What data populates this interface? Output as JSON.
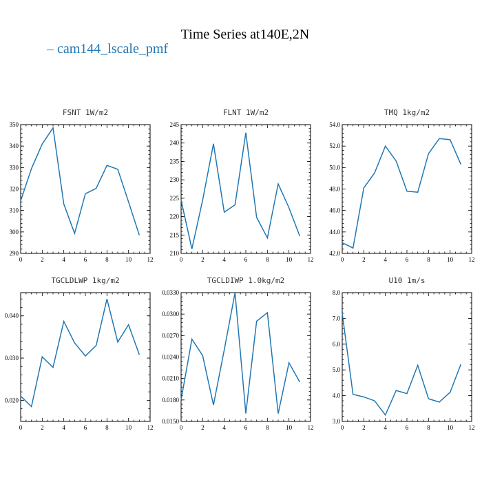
{
  "figure": {
    "title": "Time Series at140E,2N",
    "legend_label": "cam144_lscale_pmf",
    "series_color": "#1f77b4"
  },
  "chart_data": [
    {
      "type": "line",
      "title": "FSNT  1W/m2",
      "x": [
        0,
        1,
        2,
        3,
        4,
        5,
        6,
        7,
        8,
        9,
        10,
        11
      ],
      "series": [
        {
          "values": [
            314.5,
            329.5,
            341,
            348.5,
            313,
            299.3,
            317.8,
            320.3,
            331,
            329.2,
            314,
            298.5
          ]
        }
      ],
      "xlim": [
        0,
        12
      ],
      "ylim": [
        290,
        350
      ],
      "xticks": [
        0,
        2,
        4,
        6,
        8,
        10,
        12
      ],
      "yticks": [
        290,
        300,
        310,
        320,
        330,
        340,
        350
      ],
      "ytick_labels": [
        "290",
        "300",
        "310",
        "320",
        "330",
        "340",
        "350"
      ]
    },
    {
      "type": "line",
      "title": "FLNT  1W/m2",
      "x": [
        0,
        1,
        2,
        3,
        4,
        5,
        6,
        7,
        8,
        9,
        10,
        11
      ],
      "series": [
        {
          "values": [
            224.5,
            211.2,
            224.5,
            239.8,
            221.2,
            223.2,
            242.8,
            219.8,
            214.2,
            228.9,
            222.4,
            214.7
          ]
        }
      ],
      "xlim": [
        0,
        12
      ],
      "ylim": [
        210,
        245
      ],
      "xticks": [
        0,
        2,
        4,
        6,
        8,
        10,
        12
      ],
      "yticks": [
        210,
        215,
        220,
        225,
        230,
        235,
        240,
        245
      ],
      "ytick_labels": [
        "210",
        "215",
        "220",
        "225",
        "230",
        "235",
        "240",
        "245"
      ]
    },
    {
      "type": "line",
      "title": "TMQ  1kg/m2",
      "x": [
        0,
        1,
        2,
        3,
        4,
        5,
        6,
        7,
        8,
        9,
        10,
        11
      ],
      "series": [
        {
          "values": [
            43.0,
            42.5,
            48.1,
            49.5,
            52.0,
            50.6,
            47.8,
            47.7,
            51.3,
            52.7,
            52.6,
            50.3
          ]
        }
      ],
      "xlim": [
        0,
        12
      ],
      "ylim": [
        42,
        54
      ],
      "xticks": [
        0,
        2,
        4,
        6,
        8,
        10,
        12
      ],
      "yticks": [
        42,
        44,
        46,
        48,
        50,
        52,
        54
      ],
      "ytick_labels": [
        "42.0",
        "44.0",
        "46.0",
        "48.0",
        "50.0",
        "52.0",
        "54.0"
      ]
    },
    {
      "type": "line",
      "title": "TGCLDLWP  1kg/m2",
      "x": [
        0,
        1,
        2,
        3,
        4,
        5,
        6,
        7,
        8,
        9,
        10,
        11
      ],
      "series": [
        {
          "values": [
            0.021,
            0.0185,
            0.0303,
            0.0278,
            0.0387,
            0.0336,
            0.0305,
            0.033,
            0.044,
            0.0338,
            0.0379,
            0.0308
          ]
        }
      ],
      "xlim": [
        0,
        12
      ],
      "ylim": [
        0.015,
        0.0455
      ],
      "xticks": [
        0,
        2,
        4,
        6,
        8,
        10,
        12
      ],
      "yticks": [
        0.02,
        0.03,
        0.04
      ],
      "ytick_labels": [
        "0.020",
        "0.030",
        "0.040"
      ]
    },
    {
      "type": "line",
      "title": "TGCLDIWP  1.0kg/m2",
      "x": [
        0,
        1,
        2,
        3,
        4,
        5,
        6,
        7,
        8,
        9,
        10,
        11
      ],
      "series": [
        {
          "values": [
            0.018,
            0.0265,
            0.0242,
            0.0173,
            0.025,
            0.033,
            0.0161,
            0.029,
            0.0302,
            0.0161,
            0.0232,
            0.0205
          ]
        }
      ],
      "xlim": [
        0,
        12
      ],
      "ylim": [
        0.015,
        0.033
      ],
      "xticks": [
        0,
        2,
        4,
        6,
        8,
        10,
        12
      ],
      "yticks": [
        0.015,
        0.018,
        0.021,
        0.024,
        0.027,
        0.03,
        0.033
      ],
      "ytick_labels": [
        "0.0150",
        "0.0180",
        "0.0210",
        "0.0240",
        "0.0270",
        "0.0300",
        "0.0330"
      ]
    },
    {
      "type": "line",
      "title": "U10  1m/s",
      "x": [
        0,
        1,
        2,
        3,
        4,
        5,
        6,
        7,
        8,
        9,
        10,
        11
      ],
      "series": [
        {
          "values": [
            7.2,
            4.05,
            3.95,
            3.8,
            3.25,
            4.2,
            4.08,
            5.18,
            3.88,
            3.75,
            4.13,
            5.22
          ]
        }
      ],
      "xlim": [
        0,
        12
      ],
      "ylim": [
        3,
        8
      ],
      "xticks": [
        0,
        2,
        4,
        6,
        8,
        10,
        12
      ],
      "yticks": [
        3,
        4,
        5,
        6,
        7,
        8
      ],
      "ytick_labels": [
        "3.0",
        "4.0",
        "5.0",
        "6.0",
        "7.0",
        "8.0"
      ]
    }
  ]
}
